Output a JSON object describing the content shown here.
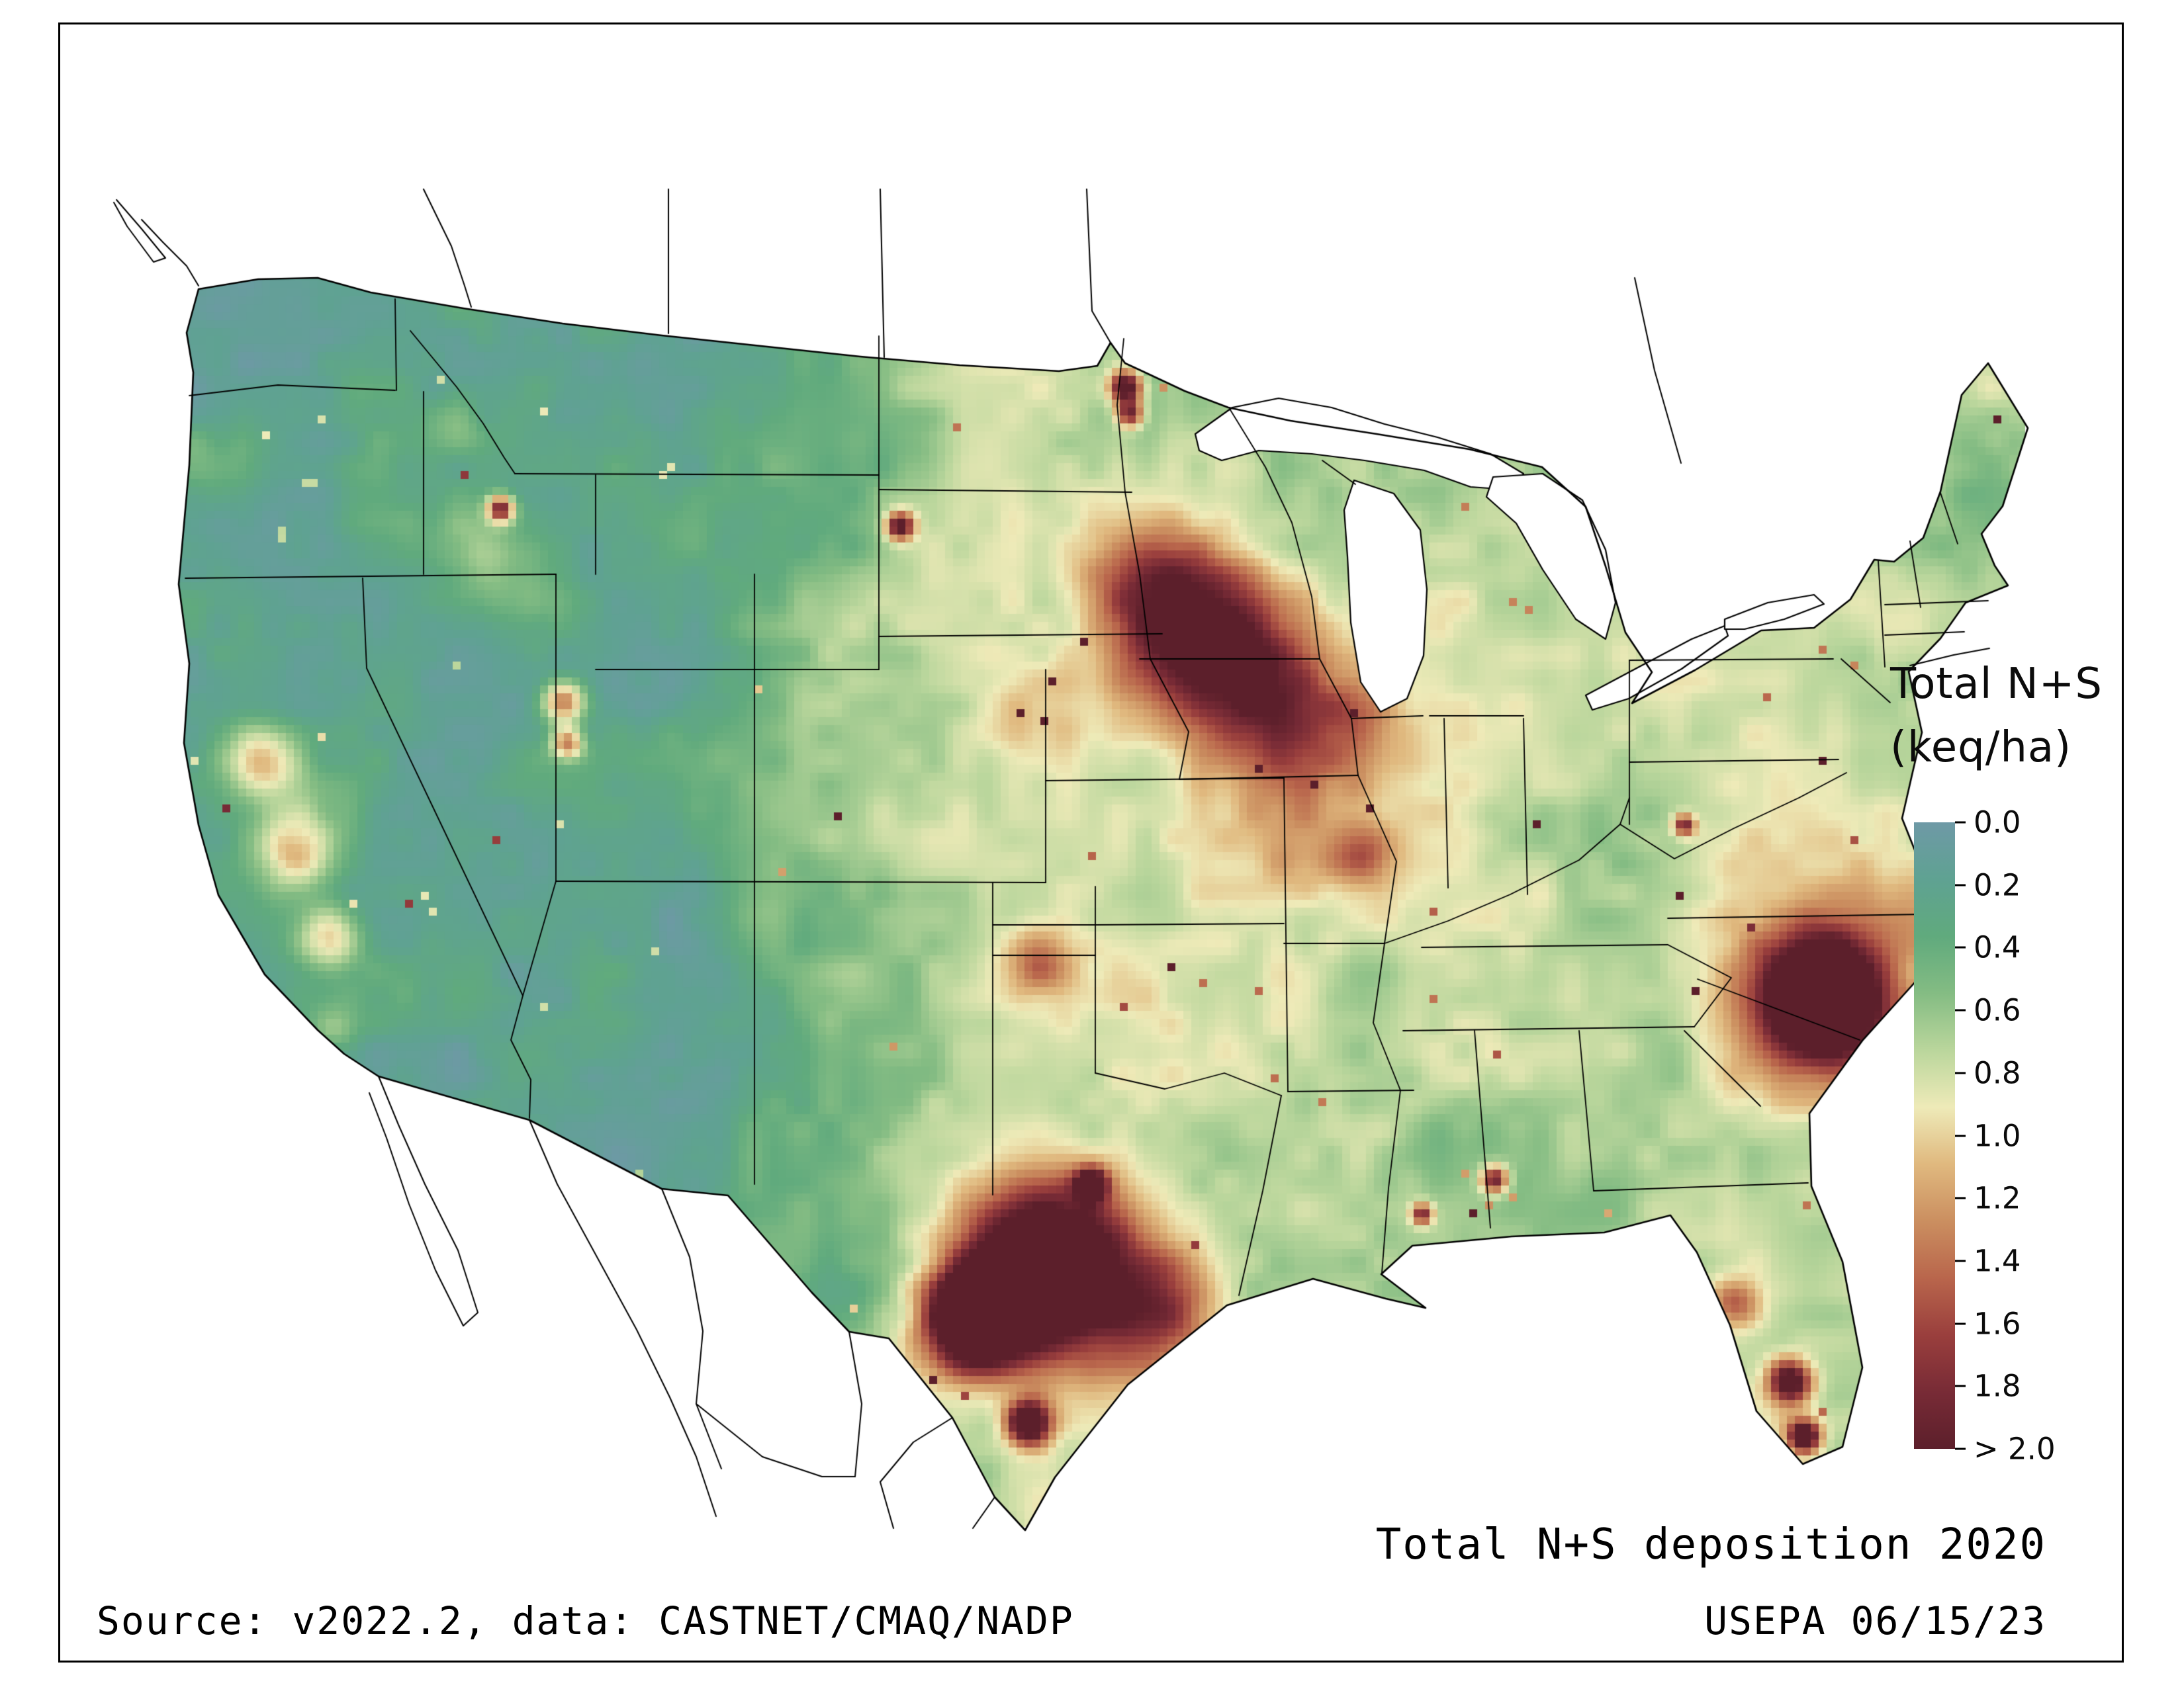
{
  "figure": {
    "background": "#ffffff",
    "frame_color": "#000000"
  },
  "legend": {
    "title_line1": "Total N+S",
    "title_line2": "(keq/ha)",
    "ticks": [
      "0.0",
      "0.2",
      "0.4",
      "0.6",
      "0.8",
      "1.0",
      "1.2",
      "1.4",
      "1.6",
      "1.8",
      "> 2.0"
    ]
  },
  "captions": {
    "title": "Total N+S deposition 2020",
    "source": "Source: v2022.2, data: CASTNET/CMAQ/NADP",
    "credit": "USEPA 06/15/23"
  },
  "map_data": {
    "type": "heatmap",
    "title": "Total N+S deposition 2020",
    "units": "keq/ha",
    "value_range": [
      0,
      2
    ],
    "over_value_label": "> 2.0",
    "water_color": "#ffffff",
    "boundary_color": "#000000",
    "colormap": [
      {
        "v": 0.0,
        "color": "#6e99a6"
      },
      {
        "v": 0.2,
        "color": "#5fa292"
      },
      {
        "v": 0.4,
        "color": "#60aa7d"
      },
      {
        "v": 0.6,
        "color": "#84bc83"
      },
      {
        "v": 0.8,
        "color": "#bad69c"
      },
      {
        "v": 1.0,
        "color": "#eeeab8"
      },
      {
        "v": 1.2,
        "color": "#e0b97f"
      },
      {
        "v": 1.4,
        "color": "#cb8f60"
      },
      {
        "v": 1.6,
        "color": "#b9664c"
      },
      {
        "v": 1.8,
        "color": "#9a3f3d"
      },
      {
        "v": 2.0,
        "color": "#782b36"
      },
      {
        "v": 2.2,
        "color": "#5c1f2b"
      }
    ],
    "base_levels": {
      "west": 0.24,
      "east": 0.88,
      "ramp_start": 0.27,
      "ramp_end": 0.5
    },
    "noise": {
      "coarse_scale": 115,
      "coarse_amp": 0.34,
      "fine_scale": 40,
      "fine_amp": 0.2
    },
    "speckles": {
      "rate_dark": 0.0009,
      "rate_tan": 0.0022,
      "dark_boost": 1.6,
      "tan_boost": 0.7
    },
    "highs": [
      {
        "name": "south-texas-main",
        "x": 0.486,
        "y": 0.814,
        "r": 0.03,
        "amp": 2.6
      },
      {
        "name": "south-texas-west",
        "x": 0.449,
        "y": 0.849,
        "r": 0.018,
        "amp": 2.2
      },
      {
        "name": "laredo-border",
        "x": 0.479,
        "y": 0.926,
        "r": 0.008,
        "amp": 2.0
      },
      {
        "name": "houston-area",
        "x": 0.549,
        "y": 0.839,
        "r": 0.022,
        "amp": 1.1
      },
      {
        "name": "east-texas-point",
        "x": 0.512,
        "y": 0.747,
        "r": 0.006,
        "amp": 1.6
      },
      {
        "name": "eastern-north-carolina",
        "x": 0.897,
        "y": 0.606,
        "r": 0.02,
        "amp": 2.6
      },
      {
        "name": "north-carolina-halo",
        "x": 0.897,
        "y": 0.606,
        "r": 0.045,
        "amp": 0.7
      },
      {
        "name": "southern-minnesota-a",
        "x": 0.545,
        "y": 0.297,
        "r": 0.028,
        "amp": 0.9
      },
      {
        "name": "southern-minnesota-b",
        "x": 0.575,
        "y": 0.342,
        "r": 0.028,
        "amp": 1.1
      },
      {
        "name": "northern-iowa",
        "x": 0.599,
        "y": 0.381,
        "r": 0.026,
        "amp": 0.75
      },
      {
        "name": "eastern-iowa",
        "x": 0.62,
        "y": 0.431,
        "r": 0.022,
        "amp": 0.55
      },
      {
        "name": "central-illinois",
        "x": 0.655,
        "y": 0.5,
        "r": 0.012,
        "amp": 0.65
      },
      {
        "name": "wisconsin-dairy",
        "x": 0.652,
        "y": 0.391,
        "r": 0.015,
        "amp": 0.5
      },
      {
        "name": "corn-belt-broad",
        "x": 0.62,
        "y": 0.45,
        "r": 0.1,
        "amp": 0.12
      },
      {
        "name": "south-florida-a",
        "x": 0.88,
        "y": 0.896,
        "r": 0.008,
        "amp": 1.7
      },
      {
        "name": "south-florida-b",
        "x": 0.887,
        "y": 0.936,
        "r": 0.006,
        "amp": 1.9
      },
      {
        "name": "central-florida",
        "x": 0.85,
        "y": 0.837,
        "r": 0.009,
        "amp": 0.8
      },
      {
        "name": "utah-wasatch-a",
        "x": 0.234,
        "y": 0.386,
        "r": 0.008,
        "amp": 1.3
      },
      {
        "name": "utah-wasatch-b",
        "x": 0.236,
        "y": 0.418,
        "r": 0.006,
        "amp": 1.1
      },
      {
        "name": "snake-river-plain",
        "x": 0.195,
        "y": 0.285,
        "r": 0.02,
        "amp": 0.45
      },
      {
        "name": "western-montana-speck",
        "x": 0.201,
        "y": 0.242,
        "r": 0.005,
        "amp": 1.7
      },
      {
        "name": "red-river-valley-a",
        "x": 0.53,
        "y": 0.151,
        "r": 0.006,
        "amp": 1.9
      },
      {
        "name": "red-river-valley-b",
        "x": 0.532,
        "y": 0.171,
        "r": 0.005,
        "amp": 1.4
      },
      {
        "name": "south-dakota-speck",
        "x": 0.411,
        "y": 0.255,
        "r": 0.005,
        "amp": 1.6
      },
      {
        "name": "colorado-rockies",
        "x": 0.366,
        "y": 0.436,
        "r": 0.045,
        "amp": 0.33
      },
      {
        "name": "central-valley-north",
        "x": 0.077,
        "y": 0.431,
        "r": 0.013,
        "amp": 0.85
      },
      {
        "name": "central-valley-mid",
        "x": 0.092,
        "y": 0.5,
        "r": 0.014,
        "amp": 0.9
      },
      {
        "name": "central-valley-south",
        "x": 0.111,
        "y": 0.564,
        "r": 0.012,
        "amp": 0.85
      },
      {
        "name": "sierra-nevada",
        "x": 0.105,
        "y": 0.46,
        "r": 0.022,
        "amp": 0.4
      },
      {
        "name": "los-angeles-basin",
        "x": 0.111,
        "y": 0.631,
        "r": 0.009,
        "amp": 0.5
      },
      {
        "name": "texas-panhandle",
        "x": 0.483,
        "y": 0.579,
        "r": 0.014,
        "amp": 0.65
      },
      {
        "name": "south-alabama-speck",
        "x": 0.724,
        "y": 0.744,
        "r": 0.005,
        "amp": 1.5
      },
      {
        "name": "mobile-speck",
        "x": 0.686,
        "y": 0.77,
        "r": 0.004,
        "amp": 1.3
      },
      {
        "name": "west-virginia-speck",
        "x": 0.824,
        "y": 0.479,
        "r": 0.004,
        "amp": 1.3
      },
      {
        "name": "central-missouri",
        "x": 0.62,
        "y": 0.5,
        "r": 0.018,
        "amp": 0.35
      },
      {
        "name": "nebraska-platte",
        "x": 0.481,
        "y": 0.396,
        "r": 0.02,
        "amp": 0.3
      },
      {
        "name": "cascades",
        "x": 0.052,
        "y": 0.208,
        "r": 0.018,
        "amp": 0.4
      },
      {
        "name": "north-idaho",
        "x": 0.178,
        "y": 0.178,
        "r": 0.012,
        "amp": 0.35
      }
    ],
    "lows": [
      {
        "name": "louisiana-gulf",
        "x": 0.67,
        "y": 0.8,
        "r": 0.05,
        "amp": -0.25
      },
      {
        "name": "southeast-coastal-plain",
        "x": 0.78,
        "y": 0.7,
        "r": 0.08,
        "amp": -0.15
      },
      {
        "name": "new-england",
        "x": 0.945,
        "y": 0.23,
        "r": 0.06,
        "amp": -0.22
      },
      {
        "name": "appalachians",
        "x": 0.8,
        "y": 0.48,
        "r": 0.05,
        "amp": -0.1
      },
      {
        "name": "northern-minnesota",
        "x": 0.545,
        "y": 0.17,
        "r": 0.05,
        "amp": -0.18
      },
      {
        "name": "northern-michigan",
        "x": 0.7,
        "y": 0.29,
        "r": 0.05,
        "amp": -0.12
      },
      {
        "name": "ozarks",
        "x": 0.63,
        "y": 0.59,
        "r": 0.04,
        "amp": -0.1
      },
      {
        "name": "east-texas-piney-woods",
        "x": 0.54,
        "y": 0.7,
        "r": 0.04,
        "amp": -0.08
      }
    ]
  }
}
